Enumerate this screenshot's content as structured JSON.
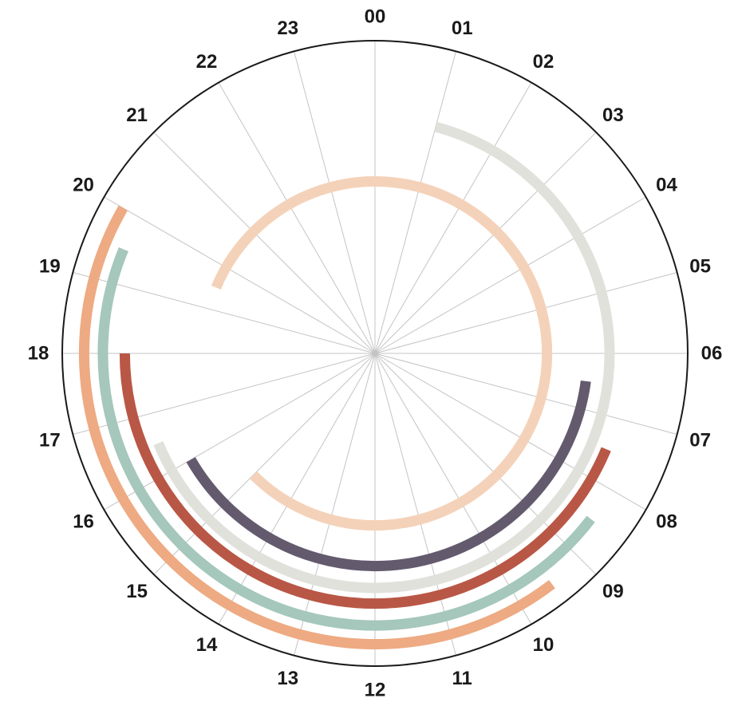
{
  "chart_data": {
    "type": "radial-arc",
    "hour_labels": [
      "00",
      "01",
      "02",
      "03",
      "04",
      "05",
      "06",
      "07",
      "08",
      "09",
      "10",
      "11",
      "12",
      "13",
      "14",
      "15",
      "16",
      "17",
      "18",
      "19",
      "20",
      "21",
      "22",
      "23"
    ],
    "grid": true,
    "series": [
      {
        "start_hour": 1.0,
        "end_hour": 16.5,
        "ring": 0.75,
        "color": "#e1e1dc"
      },
      {
        "start_hour": 6.5,
        "end_hour": 16.0,
        "ring": 0.68,
        "color": "#645a6e"
      },
      {
        "start_hour": 19.5,
        "end_hour": 15.0,
        "ring": 0.55,
        "color": "#f4d2b9"
      },
      {
        "start_hour": 7.5,
        "end_hour": 18.0,
        "ring": 0.8,
        "color": "#b95746"
      },
      {
        "start_hour": 8.5,
        "end_hour": 19.5,
        "ring": 0.87,
        "color": "#a5c7bc"
      },
      {
        "start_hour": 9.5,
        "end_hour": 20.0,
        "ring": 0.93,
        "color": "#eeaa82"
      }
    ]
  }
}
